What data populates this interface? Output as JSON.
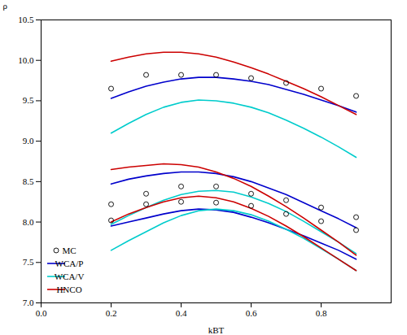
{
  "chart_data": {
    "type": "line",
    "xlabel": "kBT",
    "ylabel": "ρ",
    "xlim": [
      0,
      1
    ],
    "ylim": [
      7,
      10.5
    ],
    "xticks": [
      {
        "value": 0,
        "label": "0.0"
      },
      0.2,
      0.4,
      0.6,
      0.8
    ],
    "yticks": [
      {
        "value": 7,
        "label": "7.0"
      },
      7.5,
      {
        "value": 8,
        "label": "8.0"
      },
      8.5,
      {
        "value": 9,
        "label": "9.0"
      },
      9.5,
      {
        "value": 10,
        "label": "10.0"
      },
      10.5
    ],
    "grid": false,
    "legend": "lower left",
    "series": [
      {
        "name": "WCA/P",
        "type": "line",
        "color": "#0000cc",
        "x": [
          0.2,
          0.25,
          0.3,
          0.35,
          0.4,
          0.45,
          0.5,
          0.55,
          0.6,
          0.65,
          0.7,
          0.75,
          0.8,
          0.85,
          0.9
        ],
        "values": [
          7.95,
          8.0,
          8.05,
          8.1,
          8.14,
          8.16,
          8.15,
          8.12,
          8.06,
          7.99,
          7.91,
          7.83,
          7.74,
          7.65,
          7.54
        ]
      },
      {
        "name": "WCA/P",
        "type": "line",
        "color": "#0000cc",
        "x": [
          0.2,
          0.25,
          0.3,
          0.35,
          0.4,
          0.45,
          0.5,
          0.55,
          0.6,
          0.65,
          0.7,
          0.75,
          0.8,
          0.85,
          0.9
        ],
        "values": [
          8.47,
          8.53,
          8.57,
          8.6,
          8.62,
          8.62,
          8.6,
          8.56,
          8.5,
          8.42,
          8.34,
          8.24,
          8.14,
          8.04,
          7.93
        ]
      },
      {
        "name": "WCA/P",
        "type": "line",
        "color": "#0000cc",
        "x": [
          0.2,
          0.25,
          0.3,
          0.35,
          0.4,
          0.45,
          0.5,
          0.55,
          0.6,
          0.65,
          0.7,
          0.75,
          0.8,
          0.85,
          0.9
        ],
        "values": [
          9.53,
          9.61,
          9.68,
          9.73,
          9.77,
          9.79,
          9.79,
          9.77,
          9.74,
          9.7,
          9.64,
          9.58,
          9.51,
          9.44,
          9.36
        ]
      },
      {
        "name": "WCA/V",
        "type": "line",
        "color": "#00cccc",
        "x": [
          0.2,
          0.25,
          0.3,
          0.35,
          0.4,
          0.45,
          0.5,
          0.55,
          0.6,
          0.65,
          0.7,
          0.75,
          0.8,
          0.85,
          0.9
        ],
        "values": [
          7.65,
          7.77,
          7.88,
          7.99,
          8.08,
          8.14,
          8.16,
          8.14,
          8.09,
          8.01,
          7.91,
          7.8,
          7.67,
          7.54,
          7.4
        ]
      },
      {
        "name": "WCA/V",
        "type": "line",
        "color": "#00cccc",
        "x": [
          0.2,
          0.25,
          0.3,
          0.35,
          0.4,
          0.45,
          0.5,
          0.55,
          0.6,
          0.65,
          0.7,
          0.75,
          0.8,
          0.85,
          0.9
        ],
        "values": [
          7.97,
          8.08,
          8.18,
          8.27,
          8.34,
          8.38,
          8.39,
          8.37,
          8.31,
          8.23,
          8.13,
          8.01,
          7.88,
          7.75,
          7.61
        ]
      },
      {
        "name": "WCA/V",
        "type": "line",
        "color": "#00cccc",
        "x": [
          0.2,
          0.25,
          0.3,
          0.35,
          0.4,
          0.45,
          0.5,
          0.55,
          0.6,
          0.65,
          0.7,
          0.75,
          0.8,
          0.85,
          0.9
        ],
        "values": [
          9.1,
          9.22,
          9.33,
          9.42,
          9.48,
          9.51,
          9.5,
          9.47,
          9.42,
          9.35,
          9.26,
          9.16,
          9.05,
          8.93,
          8.8
        ]
      },
      {
        "name": "HNCO",
        "type": "line",
        "color": "#cc0000",
        "x": [
          0.2,
          0.25,
          0.3,
          0.35,
          0.4,
          0.45,
          0.5,
          0.55,
          0.6,
          0.65,
          0.7,
          0.75,
          0.8,
          0.85,
          0.9
        ],
        "values": [
          8.0,
          8.1,
          8.18,
          8.25,
          8.3,
          8.32,
          8.3,
          8.25,
          8.17,
          8.07,
          7.95,
          7.82,
          7.68,
          7.54,
          7.4
        ]
      },
      {
        "name": "HNCO",
        "type": "line",
        "color": "#cc0000",
        "x": [
          0.2,
          0.25,
          0.3,
          0.35,
          0.4,
          0.45,
          0.5,
          0.55,
          0.6,
          0.65,
          0.7,
          0.75,
          0.8,
          0.85,
          0.9
        ],
        "values": [
          8.65,
          8.68,
          8.7,
          8.72,
          8.71,
          8.68,
          8.62,
          8.54,
          8.44,
          8.32,
          8.19,
          8.05,
          7.9,
          7.75,
          7.59
        ]
      },
      {
        "name": "HNCO",
        "type": "line",
        "color": "#cc0000",
        "x": [
          0.2,
          0.25,
          0.3,
          0.35,
          0.4,
          0.45,
          0.5,
          0.55,
          0.6,
          0.65,
          0.7,
          0.75,
          0.8,
          0.85,
          0.9
        ],
        "values": [
          9.99,
          10.04,
          10.08,
          10.1,
          10.1,
          10.08,
          10.04,
          9.98,
          9.91,
          9.83,
          9.74,
          9.65,
          9.55,
          9.44,
          9.33
        ]
      },
      {
        "name": "MC",
        "type": "scatter",
        "marker": "circle",
        "color": "black",
        "x": [
          0.2,
          0.3,
          0.4,
          0.5,
          0.6,
          0.7,
          0.8,
          0.9
        ],
        "values": [
          8.02,
          8.22,
          8.25,
          8.24,
          8.2,
          8.1,
          8.01,
          7.9
        ]
      },
      {
        "name": "MC",
        "type": "scatter",
        "marker": "circle",
        "color": "black",
        "x": [
          0.2,
          0.3,
          0.4,
          0.5,
          0.6,
          0.7,
          0.8,
          0.9
        ],
        "values": [
          8.22,
          8.35,
          8.44,
          8.44,
          8.35,
          8.27,
          8.18,
          8.06
        ]
      },
      {
        "name": "MC",
        "type": "scatter",
        "marker": "circle",
        "color": "black",
        "x": [
          0.2,
          0.3,
          0.4,
          0.5,
          0.6,
          0.7,
          0.8,
          0.9
        ],
        "values": [
          9.65,
          9.82,
          9.82,
          9.82,
          9.78,
          9.72,
          9.65,
          9.56
        ]
      }
    ],
    "legend_order": [
      "MC",
      "WCA/P",
      "WCA/V",
      "HNCO"
    ]
  }
}
